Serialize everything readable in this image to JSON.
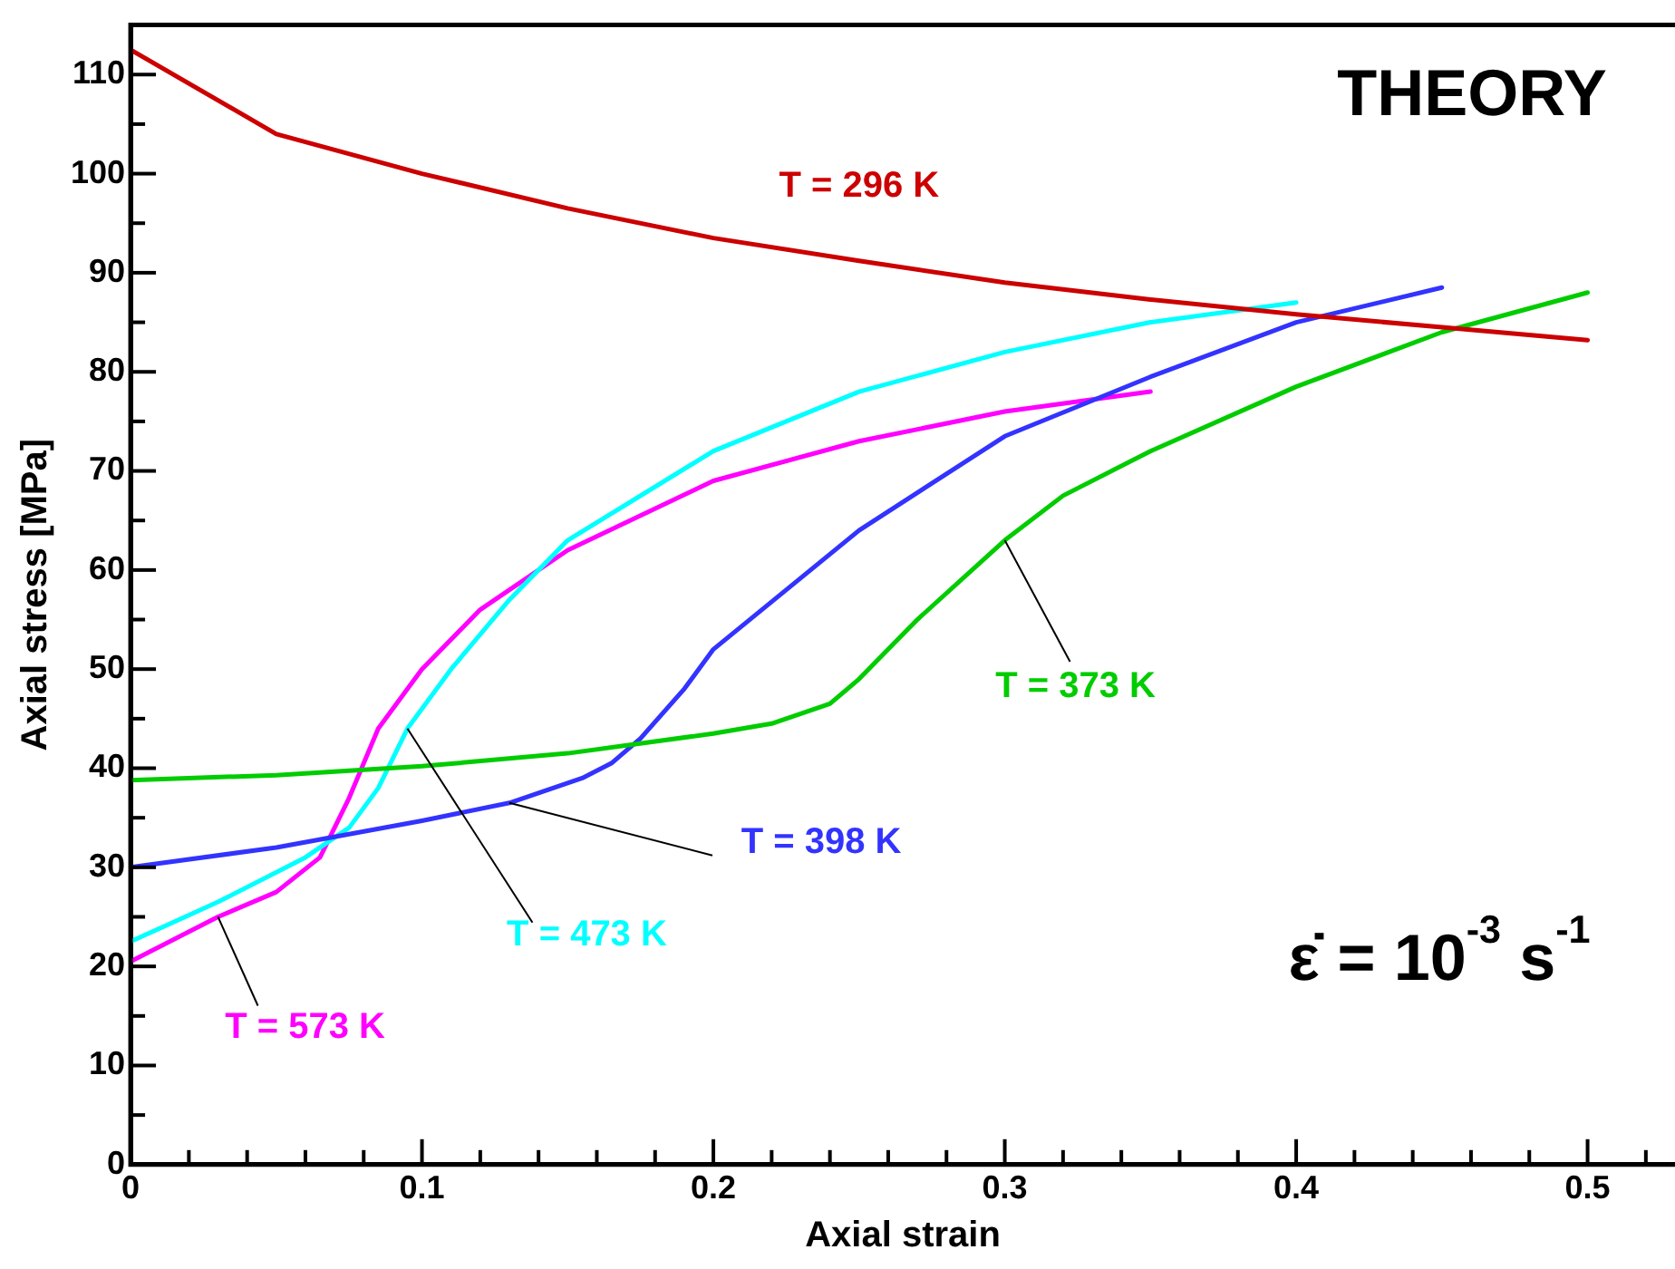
{
  "chart_data": {
    "type": "line",
    "xlabel": "Axial strain",
    "ylabel": "Axial stress [MPa]",
    "xlim": [
      0,
      0.53
    ],
    "ylim": [
      0,
      115
    ],
    "xticks": [
      0,
      {
        "value": 0.02,
        "label": null
      },
      {
        "value": 0.04,
        "label": null
      },
      {
        "value": 0.06,
        "label": null
      },
      {
        "value": 0.08,
        "label": null
      },
      0.1,
      {
        "value": 0.12,
        "label": null
      },
      {
        "value": 0.14,
        "label": null
      },
      {
        "value": 0.16,
        "label": null
      },
      {
        "value": 0.18,
        "label": null
      },
      0.2,
      {
        "value": 0.22,
        "label": null
      },
      {
        "value": 0.24,
        "label": null
      },
      {
        "value": 0.26,
        "label": null
      },
      {
        "value": 0.28,
        "label": null
      },
      0.3,
      {
        "value": 0.32,
        "label": null
      },
      {
        "value": 0.34,
        "label": null
      },
      {
        "value": 0.36,
        "label": null
      },
      {
        "value": 0.38,
        "label": null
      },
      0.4,
      {
        "value": 0.42,
        "label": null
      },
      {
        "value": 0.44,
        "label": null
      },
      {
        "value": 0.46,
        "label": null
      },
      {
        "value": 0.48,
        "label": null
      },
      0.5,
      {
        "value": 0.52,
        "label": null
      }
    ],
    "yticks": [
      0,
      {
        "value": 5,
        "label": null
      },
      10,
      {
        "value": 15,
        "label": null
      },
      20,
      {
        "value": 25,
        "label": null
      },
      30,
      {
        "value": 35,
        "label": null
      },
      40,
      {
        "value": 45,
        "label": null
      },
      50,
      {
        "value": 55,
        "label": null
      },
      60,
      {
        "value": 65,
        "label": null
      },
      70,
      {
        "value": 75,
        "label": null
      },
      80,
      {
        "value": 85,
        "label": null
      },
      90,
      {
        "value": 95,
        "label": null
      },
      100,
      {
        "value": 105,
        "label": null
      },
      110
    ],
    "grid": false,
    "legend": false,
    "marker": "none",
    "line_style": "solid",
    "annotations": [
      "THEORY",
      "ε̇ = 10$^{-3}$ s$^{-1}$"
    ],
    "series": [
      {
        "name": "T = 296 K",
        "color": "#cc0000",
        "x": [
          0,
          0.05,
          0.1,
          0.15,
          0.2,
          0.25,
          0.3,
          0.35,
          0.4,
          0.45,
          0.5
        ],
        "values": [
          112.5,
          104,
          100,
          96.5,
          93.5,
          91.2,
          89,
          87.3,
          85.8,
          84.5,
          83.2
        ]
      },
      {
        "name": "T = 373 K",
        "color": "#00cc00",
        "x": [
          0,
          0.05,
          0.1,
          0.15,
          0.2,
          0.22,
          0.24,
          0.25,
          0.27,
          0.3,
          0.32,
          0.35,
          0.4,
          0.45,
          0.5
        ],
        "values": [
          38.8,
          39.3,
          40.2,
          41.5,
          43.5,
          44.5,
          46.5,
          49,
          55,
          63,
          67.5,
          72,
          78.5,
          84,
          88
        ]
      },
      {
        "name": "T = 398 K",
        "color": "#3333ff",
        "x": [
          0,
          0.05,
          0.1,
          0.13,
          0.155,
          0.165,
          0.175,
          0.19,
          0.2,
          0.25,
          0.3,
          0.35,
          0.4,
          0.45
        ],
        "values": [
          30,
          32,
          34.7,
          36.5,
          39,
          40.5,
          43,
          48,
          52,
          64,
          73.5,
          79.5,
          85,
          88.5
        ]
      },
      {
        "name": "T = 473 K",
        "color": "#00ffff",
        "x": [
          0,
          0.03,
          0.06,
          0.075,
          0.085,
          0.095,
          0.11,
          0.13,
          0.15,
          0.2,
          0.25,
          0.3,
          0.35,
          0.4
        ],
        "values": [
          22.5,
          26.5,
          31,
          34,
          38,
          44,
          50,
          57,
          63,
          72,
          78,
          82,
          85,
          87
        ]
      },
      {
        "name": "T = 573 K",
        "color": "#ff00ff",
        "x": [
          0,
          0.03,
          0.05,
          0.065,
          0.075,
          0.085,
          0.1,
          0.12,
          0.15,
          0.2,
          0.25,
          0.3,
          0.35
        ],
        "values": [
          20.5,
          25,
          27.5,
          31,
          37,
          44,
          50,
          56,
          62,
          69,
          73,
          76,
          78
        ]
      }
    ]
  }
}
